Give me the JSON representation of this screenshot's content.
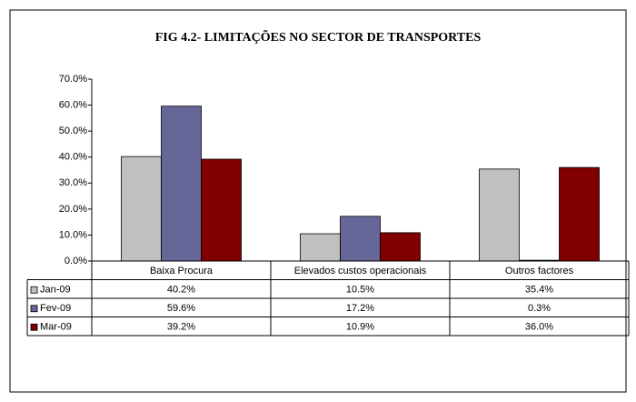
{
  "chart_data": {
    "type": "bar",
    "title": "FIG 4.2- LIMITAÇÕES  NO SECTOR DE  TRANSPORTES",
    "categories": [
      "Baixa Procura",
      "Elevados custos operacionais",
      "Outros factores"
    ],
    "series": [
      {
        "name": "Jan-09",
        "color": "#c0c0c0",
        "values": [
          40.2,
          10.5,
          35.4
        ],
        "value_labels": [
          "40.2%",
          "10.5%",
          "35.4%"
        ]
      },
      {
        "name": "Fev-09",
        "color": "#666699",
        "values": [
          59.6,
          17.2,
          0.3
        ],
        "value_labels": [
          "59.6%",
          "17.2%",
          "0.3%"
        ]
      },
      {
        "name": "Mar-09",
        "color": "#800000",
        "values": [
          39.2,
          10.9,
          36.0
        ],
        "value_labels": [
          "39.2%",
          "10.9%",
          "36.0%"
        ]
      }
    ],
    "ylim": [
      0,
      70
    ],
    "yticks": [
      {
        "value": 0,
        "label": "0.0%"
      },
      {
        "value": 10,
        "label": "10.0%"
      },
      {
        "value": 20,
        "label": "20.0%"
      },
      {
        "value": 30,
        "label": "30.0%"
      },
      {
        "value": 40,
        "label": "40.0%"
      },
      {
        "value": 50,
        "label": "50.0%"
      },
      {
        "value": 60,
        "label": "60.0%"
      },
      {
        "value": 70,
        "label": "70.0%"
      }
    ]
  }
}
